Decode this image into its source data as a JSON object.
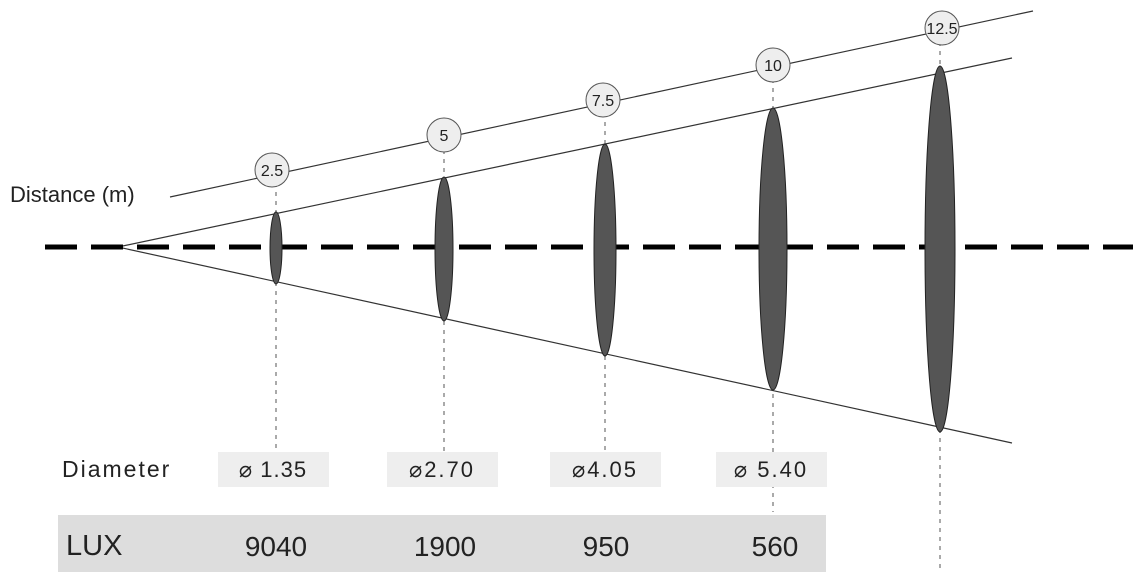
{
  "diagram": {
    "distance_label": "Distance (m)",
    "diameter_label": "Diameter",
    "lux_label": "LUX",
    "colors": {
      "beam": "#555555",
      "dash_line": "#000000",
      "dotted_line": "#aaaaaa",
      "bubble_fill": "#eeeeee",
      "diameter_box": "#eeeeee",
      "lux_band": "#dddddd"
    },
    "stations": [
      {
        "distance": "2.5",
        "diameter": "⌀ 1.35",
        "lux": "9040"
      },
      {
        "distance": "5",
        "diameter": "⌀2.70",
        "lux": "1900"
      },
      {
        "distance": "7.5",
        "diameter": "⌀4.05",
        "lux": "950"
      },
      {
        "distance": "10",
        "diameter": "⌀ 5.40",
        "lux": "560"
      },
      {
        "distance": "12.5",
        "diameter": "",
        "lux": ""
      }
    ]
  }
}
